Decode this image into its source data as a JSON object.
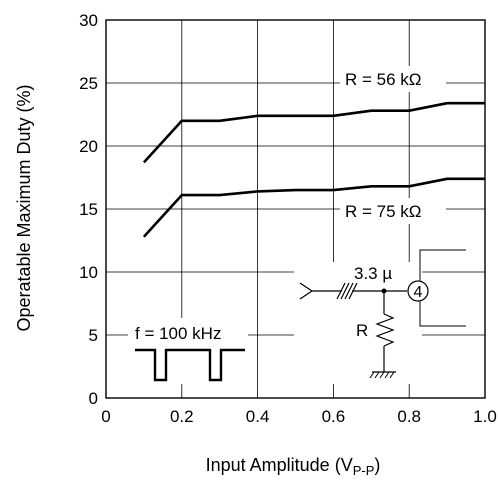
{
  "chart_data": {
    "type": "line",
    "xlabel": "Input Amplitude (V",
    "xlabel_sub": "P-P",
    "xlabel_close": ")",
    "ylabel": "Operatable Maximum Duty (%)",
    "xlim": [
      0,
      1.0
    ],
    "ylim": [
      0,
      30
    ],
    "x_ticks": [
      "0",
      "0.2",
      "0.4",
      "0.6",
      "0.8",
      "1.0"
    ],
    "y_ticks": [
      "0",
      "5",
      "10",
      "15",
      "20",
      "25",
      "30"
    ],
    "grid": true,
    "series": [
      {
        "name": "R = 56 kΩ",
        "points": [
          [
            0.1,
            18.7
          ],
          [
            0.2,
            22.0
          ],
          [
            0.3,
            22.0
          ],
          [
            0.4,
            22.4
          ],
          [
            0.5,
            22.4
          ],
          [
            0.6,
            22.4
          ],
          [
            0.7,
            22.8
          ],
          [
            0.8,
            22.8
          ],
          [
            0.9,
            23.4
          ],
          [
            1.0,
            23.4
          ]
        ]
      },
      {
        "name": "R = 75 kΩ",
        "points": [
          [
            0.1,
            12.8
          ],
          [
            0.2,
            16.1
          ],
          [
            0.3,
            16.1
          ],
          [
            0.4,
            16.4
          ],
          [
            0.5,
            16.5
          ],
          [
            0.6,
            16.5
          ],
          [
            0.7,
            16.8
          ],
          [
            0.8,
            16.8
          ],
          [
            0.9,
            17.4
          ],
          [
            1.0,
            17.4
          ]
        ]
      }
    ],
    "annotations": {
      "frequency": "f = 100 kHz",
      "capacitor": "3.3 µ",
      "resistor": "R",
      "pin": "4"
    }
  }
}
